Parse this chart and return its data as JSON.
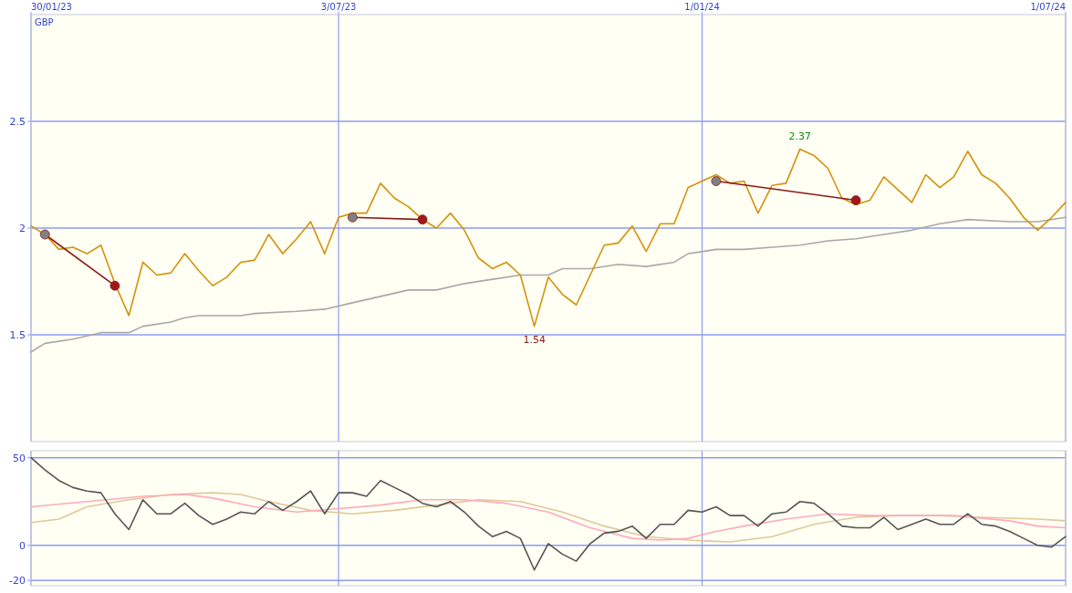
{
  "chart_data": [
    {
      "type": "line",
      "ylabel": "GBP",
      "xlim": [
        "2023-01-30",
        "2024-07-01"
      ],
      "xticks": [
        {
          "value": "2023-01-30",
          "label": "30/01/23"
        },
        {
          "value": "2023-07-03",
          "label": "3/07/23"
        },
        {
          "value": "2024-01-01",
          "label": "1/01/24"
        },
        {
          "value": "2024-07-01",
          "label": "1/07/24"
        }
      ],
      "ylim": [
        1.0,
        3.0
      ],
      "yticks": [
        1.5,
        2,
        2.5
      ],
      "grid": true,
      "x": [
        "2023-01-30",
        "2023-02-06",
        "2023-02-13",
        "2023-02-20",
        "2023-02-27",
        "2023-03-06",
        "2023-03-13",
        "2023-03-20",
        "2023-03-27",
        "2023-04-03",
        "2023-04-10",
        "2023-04-17",
        "2023-04-24",
        "2023-05-01",
        "2023-05-08",
        "2023-05-15",
        "2023-05-22",
        "2023-05-29",
        "2023-06-05",
        "2023-06-12",
        "2023-06-19",
        "2023-06-26",
        "2023-07-03",
        "2023-07-10",
        "2023-07-17",
        "2023-07-24",
        "2023-07-31",
        "2023-08-07",
        "2023-08-14",
        "2023-08-21",
        "2023-08-28",
        "2023-09-04",
        "2023-09-11",
        "2023-09-18",
        "2023-09-25",
        "2023-10-02",
        "2023-10-09",
        "2023-10-16",
        "2023-10-23",
        "2023-10-30",
        "2023-11-06",
        "2023-11-13",
        "2023-11-20",
        "2023-11-27",
        "2023-12-04",
        "2023-12-11",
        "2023-12-18",
        "2023-12-25",
        "2024-01-01",
        "2024-01-08",
        "2024-01-15",
        "2024-01-22",
        "2024-01-29",
        "2024-02-05",
        "2024-02-12",
        "2024-02-19",
        "2024-02-26",
        "2024-03-04",
        "2024-03-11",
        "2024-03-18",
        "2024-03-25",
        "2024-04-01",
        "2024-04-08",
        "2024-04-15",
        "2024-04-22",
        "2024-04-29",
        "2024-05-06",
        "2024-05-13",
        "2024-05-20",
        "2024-05-27",
        "2024-06-03",
        "2024-06-10",
        "2024-06-17",
        "2024-06-24",
        "2024-07-01"
      ],
      "series": [
        {
          "color": "#a8a8a8",
          "x": [
            "2023-01-30",
            "2023-02-06",
            "2023-02-20",
            "2023-03-06",
            "2023-03-20",
            "2023-03-27",
            "2023-04-10",
            "2023-04-17",
            "2023-04-24",
            "2023-05-15",
            "2023-05-22",
            "2023-06-12",
            "2023-06-26",
            "2023-07-10",
            "2023-07-24",
            "2023-08-07",
            "2023-08-21",
            "2023-09-04",
            "2023-09-18",
            "2023-10-02",
            "2023-10-16",
            "2023-10-23",
            "2023-11-06",
            "2023-11-20",
            "2023-12-04",
            "2023-12-18",
            "2023-12-25",
            "2024-01-08",
            "2024-01-22",
            "2024-02-05",
            "2024-02-19",
            "2024-03-04",
            "2024-03-18",
            "2024-04-01",
            "2024-04-15",
            "2024-04-29",
            "2024-05-13",
            "2024-06-03",
            "2024-06-17",
            "2024-07-01"
          ],
          "values": [
            1.42,
            1.46,
            1.48,
            1.51,
            1.51,
            1.54,
            1.56,
            1.58,
            1.59,
            1.59,
            1.6,
            1.61,
            1.62,
            1.65,
            1.68,
            1.71,
            1.71,
            1.74,
            1.76,
            1.78,
            1.78,
            1.81,
            1.81,
            1.83,
            1.82,
            1.84,
            1.88,
            1.9,
            1.9,
            1.91,
            1.92,
            1.94,
            1.95,
            1.97,
            1.99,
            2.02,
            2.04,
            2.03,
            2.03,
            2.05
          ]
        },
        {
          "color": "#d4920a",
          "values": [
            2.01,
            1.97,
            1.9,
            1.91,
            1.88,
            1.92,
            1.74,
            1.59,
            1.84,
            1.78,
            1.79,
            1.88,
            1.8,
            1.73,
            1.77,
            1.84,
            1.85,
            1.97,
            1.88,
            1.95,
            2.03,
            1.88,
            2.05,
            2.07,
            2.07,
            2.21,
            2.14,
            2.1,
            2.04,
            2.0,
            2.07,
            1.99,
            1.86,
            1.81,
            1.84,
            1.78,
            1.54,
            1.77,
            1.69,
            1.64,
            1.78,
            1.92,
            1.93,
            2.01,
            1.89,
            2.02,
            2.02,
            2.19,
            2.22,
            2.25,
            2.21,
            2.22,
            2.07,
            2.2,
            2.21,
            2.37,
            2.34,
            2.28,
            2.14,
            2.11,
            2.13,
            2.24,
            2.18,
            2.12,
            2.25,
            2.19,
            2.24,
            2.36,
            2.25,
            2.21,
            2.14,
            2.05,
            1.99,
            2.05,
            2.12
          ]
        },
        {
          "color": "#8b1a1a",
          "marker": "circle",
          "x": [
            "2023-02-06",
            "2023-03-13"
          ],
          "values": [
            1.97,
            1.73
          ]
        },
        {
          "color": "#8b1a1a",
          "marker": "circle",
          "x": [
            "2023-07-10",
            "2023-08-14"
          ],
          "values": [
            2.05,
            2.04
          ]
        },
        {
          "color": "#8b1a1a",
          "marker": "circle",
          "x": [
            "2024-01-08",
            "2024-03-18"
          ],
          "values": [
            2.22,
            2.13
          ]
        }
      ],
      "annotations": [
        {
          "text": "2.37",
          "x": "2024-02-19",
          "y": 2.37
        },
        {
          "text": "1.54",
          "x": "2023-10-09",
          "y": 1.54
        }
      ]
    },
    {
      "type": "line",
      "xlim": [
        "2023-01-30",
        "2024-07-01"
      ],
      "xticks": [
        {
          "value": "2023-01-30",
          "label": null
        },
        {
          "value": "2023-07-03",
          "label": null
        },
        {
          "value": "2024-01-01",
          "label": null
        },
        {
          "value": "2024-07-01",
          "label": null
        }
      ],
      "tick_labels": "y",
      "ylim": [
        -23,
        54
      ],
      "yticks": [
        50,
        0,
        -20
      ],
      "grid": true,
      "x": [
        "2023-01-30",
        "2023-02-06",
        "2023-02-13",
        "2023-02-20",
        "2023-02-27",
        "2023-03-06",
        "2023-03-13",
        "2023-03-20",
        "2023-03-27",
        "2023-04-03",
        "2023-04-10",
        "2023-04-17",
        "2023-04-24",
        "2023-05-01",
        "2023-05-08",
        "2023-05-15",
        "2023-05-22",
        "2023-05-29",
        "2023-06-05",
        "2023-06-12",
        "2023-06-19",
        "2023-06-26",
        "2023-07-03",
        "2023-07-10",
        "2023-07-17",
        "2023-07-24",
        "2023-07-31",
        "2023-08-07",
        "2023-08-14",
        "2023-08-21",
        "2023-08-28",
        "2023-09-04",
        "2023-09-11",
        "2023-09-18",
        "2023-09-25",
        "2023-10-02",
        "2023-10-09",
        "2023-10-16",
        "2023-10-23",
        "2023-10-30",
        "2023-11-06",
        "2023-11-13",
        "2023-11-20",
        "2023-11-27",
        "2023-12-04",
        "2023-12-11",
        "2023-12-18",
        "2023-12-25",
        "2024-01-01",
        "2024-01-08",
        "2024-01-15",
        "2024-01-22",
        "2024-01-29",
        "2024-02-05",
        "2024-02-12",
        "2024-02-19",
        "2024-02-26",
        "2024-03-04",
        "2024-03-11",
        "2024-03-18",
        "2024-03-25",
        "2024-04-01",
        "2024-04-08",
        "2024-04-15",
        "2024-04-22",
        "2024-04-29",
        "2024-05-06",
        "2024-05-13",
        "2024-05-20",
        "2024-05-27",
        "2024-06-03",
        "2024-06-10",
        "2024-06-17",
        "2024-06-24",
        "2024-07-01"
      ],
      "series": [
        {
          "color": "#e0c898",
          "x": [
            "2023-01-30",
            "2023-02-13",
            "2023-02-27",
            "2023-03-20",
            "2023-04-10",
            "2023-05-01",
            "2023-05-15",
            "2023-05-29",
            "2023-06-19",
            "2023-07-10",
            "2023-07-31",
            "2023-08-21",
            "2023-09-11",
            "2023-10-02",
            "2023-10-23",
            "2023-11-13",
            "2023-12-04",
            "2023-12-25",
            "2024-01-15",
            "2024-02-05",
            "2024-02-26",
            "2024-03-18",
            "2024-04-08",
            "2024-04-29",
            "2024-05-20",
            "2024-06-17",
            "2024-07-01"
          ],
          "values": [
            13,
            15,
            22,
            26,
            29,
            30,
            29,
            25,
            20,
            18,
            20,
            23,
            26,
            25,
            19,
            11,
            5,
            3,
            2,
            5,
            12,
            16,
            17,
            17,
            16,
            15,
            14
          ]
        },
        {
          "color": "#ffaabb",
          "x": [
            "2023-01-30",
            "2023-02-27",
            "2023-03-27",
            "2023-04-17",
            "2023-05-01",
            "2023-05-22",
            "2023-06-12",
            "2023-07-03",
            "2023-07-24",
            "2023-08-14",
            "2023-09-04",
            "2023-09-25",
            "2023-10-16",
            "2023-11-06",
            "2023-11-27",
            "2023-12-11",
            "2023-12-25",
            "2024-01-08",
            "2024-01-22",
            "2024-02-12",
            "2024-03-04",
            "2024-03-25",
            "2024-04-15",
            "2024-05-06",
            "2024-06-03",
            "2024-06-17",
            "2024-07-01"
          ],
          "values": [
            22,
            25,
            28,
            29,
            27,
            22,
            19,
            21,
            23,
            26,
            26,
            24,
            19,
            10,
            4,
            3,
            4,
            8,
            11,
            15,
            18,
            17,
            17,
            17,
            14,
            11,
            10
          ]
        },
        {
          "color": "#555555",
          "values": [
            50,
            43,
            37,
            33,
            31,
            30,
            18,
            9,
            26,
            18,
            18,
            24,
            17,
            12,
            15,
            19,
            18,
            25,
            20,
            25,
            31,
            18,
            30,
            30,
            28,
            37,
            33,
            29,
            24,
            22,
            25,
            19,
            11,
            5,
            8,
            4,
            -14,
            1,
            -5,
            -9,
            1,
            7,
            8,
            11,
            4,
            12,
            12,
            20,
            19,
            22,
            17,
            17,
            11,
            18,
            19,
            25,
            24,
            18,
            11,
            10,
            10,
            16,
            9,
            12,
            15,
            12,
            12,
            18,
            12,
            11,
            8,
            4,
            0,
            -1,
            5
          ]
        }
      ]
    }
  ]
}
